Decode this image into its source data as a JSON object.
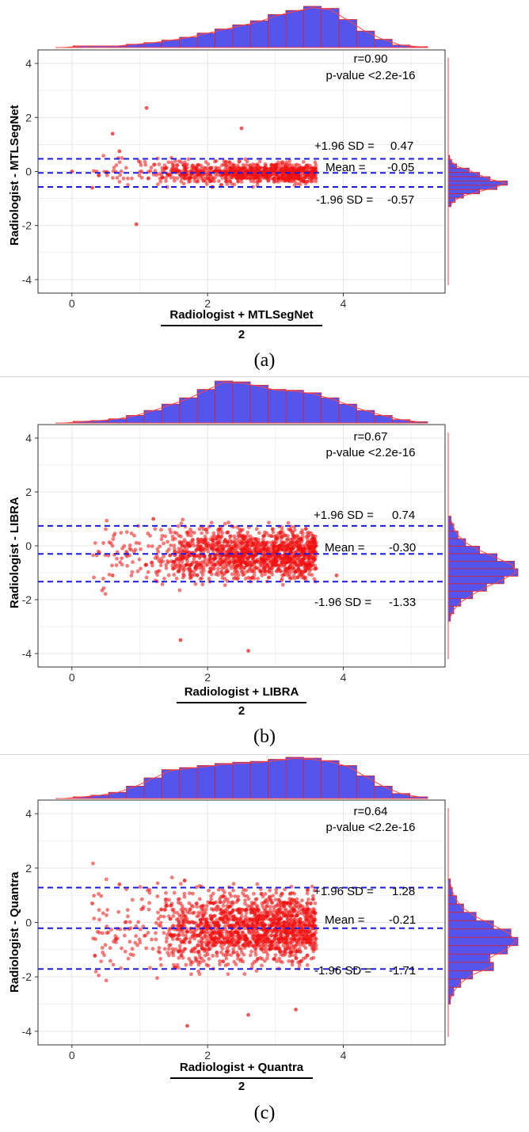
{
  "colors": {
    "points": "#ee1111",
    "hist_fill": "#5555ee",
    "hist_edge": "#dd2222",
    "density": "#ff4444",
    "hlines": "#1a1ae6",
    "grid": "#e6e6e6",
    "frame": "#333333"
  },
  "chart_data": [
    {
      "type": "scatter",
      "caption": "(a)",
      "ylabel": "Radiologist - MTLSegNet",
      "xlabel_numerator": "Radiologist + MTLSegNet",
      "xlabel_denominator": "2",
      "xlim": [
        -0.5,
        5.5
      ],
      "ylim": [
        -4.5,
        4.5
      ],
      "xticks": [
        0,
        2,
        4
      ],
      "yticks": [
        4,
        2,
        0,
        -2,
        -4
      ],
      "r_text": "r=0.90",
      "p_text": "p-value <2.2e-16",
      "upper": {
        "label": "+1.96 SD =",
        "value": "0.47",
        "y": 0.47
      },
      "mean": {
        "label": "Mean =",
        "value": "-0.05",
        "y": -0.05
      },
      "lower": {
        "label": "-1.96 SD =",
        "value": "-0.57",
        "y": -0.57
      },
      "spread": 0.22,
      "upper_dir": 0.3,
      "lower_dir": -0.35,
      "top_hist": [
        0.0,
        0.04,
        0.04,
        0.04,
        0.08,
        0.12,
        0.18,
        0.25,
        0.35,
        0.45,
        0.55,
        0.65,
        0.8,
        0.9,
        1.0,
        0.95,
        0.68,
        0.4,
        0.2,
        0.06,
        0.02
      ],
      "right_hist": [
        0.02,
        0.05,
        0.12,
        0.3,
        0.45,
        0.6,
        0.85,
        0.7,
        0.45,
        0.22,
        0.1,
        0.04
      ],
      "right_range": [
        -1.3,
        0.6
      ],
      "extra_points": [
        [
          1.1,
          2.35
        ],
        [
          0.95,
          -1.95
        ],
        [
          2.5,
          1.6
        ],
        [
          0.6,
          1.4
        ],
        [
          0.0,
          0.0
        ],
        [
          0.3,
          -0.6
        ],
        [
          0.7,
          0.75
        ]
      ]
    },
    {
      "type": "scatter",
      "caption": "(b)",
      "ylabel": "Radiologist - LIBRA",
      "xlabel_numerator": "Radiologist + LIBRA",
      "xlabel_denominator": "2",
      "xlim": [
        -0.5,
        5.5
      ],
      "ylim": [
        -4.5,
        4.5
      ],
      "xticks": [
        0,
        2,
        4
      ],
      "yticks": [
        4,
        2,
        0,
        -2,
        -4
      ],
      "r_text": "r=0.67",
      "p_text": "p-value <2.2e-16",
      "upper": {
        "label": "+1.96 SD =",
        "value": "0.74",
        "y": 0.74
      },
      "mean": {
        "label": "Mean =",
        "value": "-0.30",
        "y": -0.3
      },
      "lower": {
        "label": "-1.96 SD =",
        "value": "-1.33",
        "y": -1.33
      },
      "spread": 0.55,
      "upper_dir": 0.8,
      "lower_dir": -1.2,
      "top_hist": [
        0.0,
        0.04,
        0.06,
        0.1,
        0.18,
        0.3,
        0.45,
        0.6,
        0.8,
        1.0,
        0.98,
        0.9,
        0.8,
        0.78,
        0.72,
        0.6,
        0.45,
        0.3,
        0.18,
        0.08,
        0.03
      ],
      "right_hist": [
        0.04,
        0.08,
        0.14,
        0.25,
        0.45,
        0.7,
        0.95,
        1.0,
        0.8,
        0.55,
        0.35,
        0.18,
        0.08,
        0.03
      ],
      "right_range": [
        -2.8,
        1.1
      ],
      "extra_points": [
        [
          0.6,
          -1.1
        ],
        [
          1.2,
          1.0
        ],
        [
          2.6,
          -3.9
        ],
        [
          3.9,
          -1.1
        ],
        [
          1.6,
          -3.5
        ]
      ]
    },
    {
      "type": "scatter",
      "caption": "(c)",
      "ylabel": "Radiologist - Quantra",
      "xlabel_numerator": "Radiologist + Quantra",
      "xlabel_denominator": "2",
      "xlim": [
        -0.5,
        5.5
      ],
      "ylim": [
        -4.5,
        4.5
      ],
      "xticks": [
        0,
        2,
        4
      ],
      "yticks": [
        4,
        2,
        0,
        -2,
        -4
      ],
      "r_text": "r=0.64",
      "p_text": "p-value <2.2e-16",
      "upper": {
        "label": "+1.96 SD =",
        "value": "1.28",
        "y": 1.28
      },
      "mean": {
        "label": "Mean =",
        "value": "-0.21",
        "y": -0.21
      },
      "lower": {
        "label": "-1.96 SD =",
        "value": "-1.71",
        "y": -1.71
      },
      "spread": 0.75,
      "upper_dir": 1.1,
      "lower_dir": -1.5,
      "top_hist": [
        0.0,
        0.04,
        0.08,
        0.15,
        0.3,
        0.5,
        0.7,
        0.75,
        0.8,
        0.85,
        0.88,
        0.9,
        0.95,
        1.0,
        0.98,
        0.92,
        0.8,
        0.55,
        0.3,
        0.12,
        0.04
      ],
      "right_hist": [
        0.03,
        0.06,
        0.12,
        0.22,
        0.4,
        0.65,
        0.9,
        1.0,
        0.85,
        0.6,
        0.65,
        0.35,
        0.18,
        0.08,
        0.03
      ],
      "right_range": [
        -3.0,
        1.6
      ],
      "extra_points": [
        [
          0.3,
          0.7
        ],
        [
          0.7,
          1.4
        ],
        [
          1.7,
          -3.8
        ],
        [
          2.6,
          -3.4
        ],
        [
          3.3,
          -3.2
        ]
      ]
    }
  ]
}
